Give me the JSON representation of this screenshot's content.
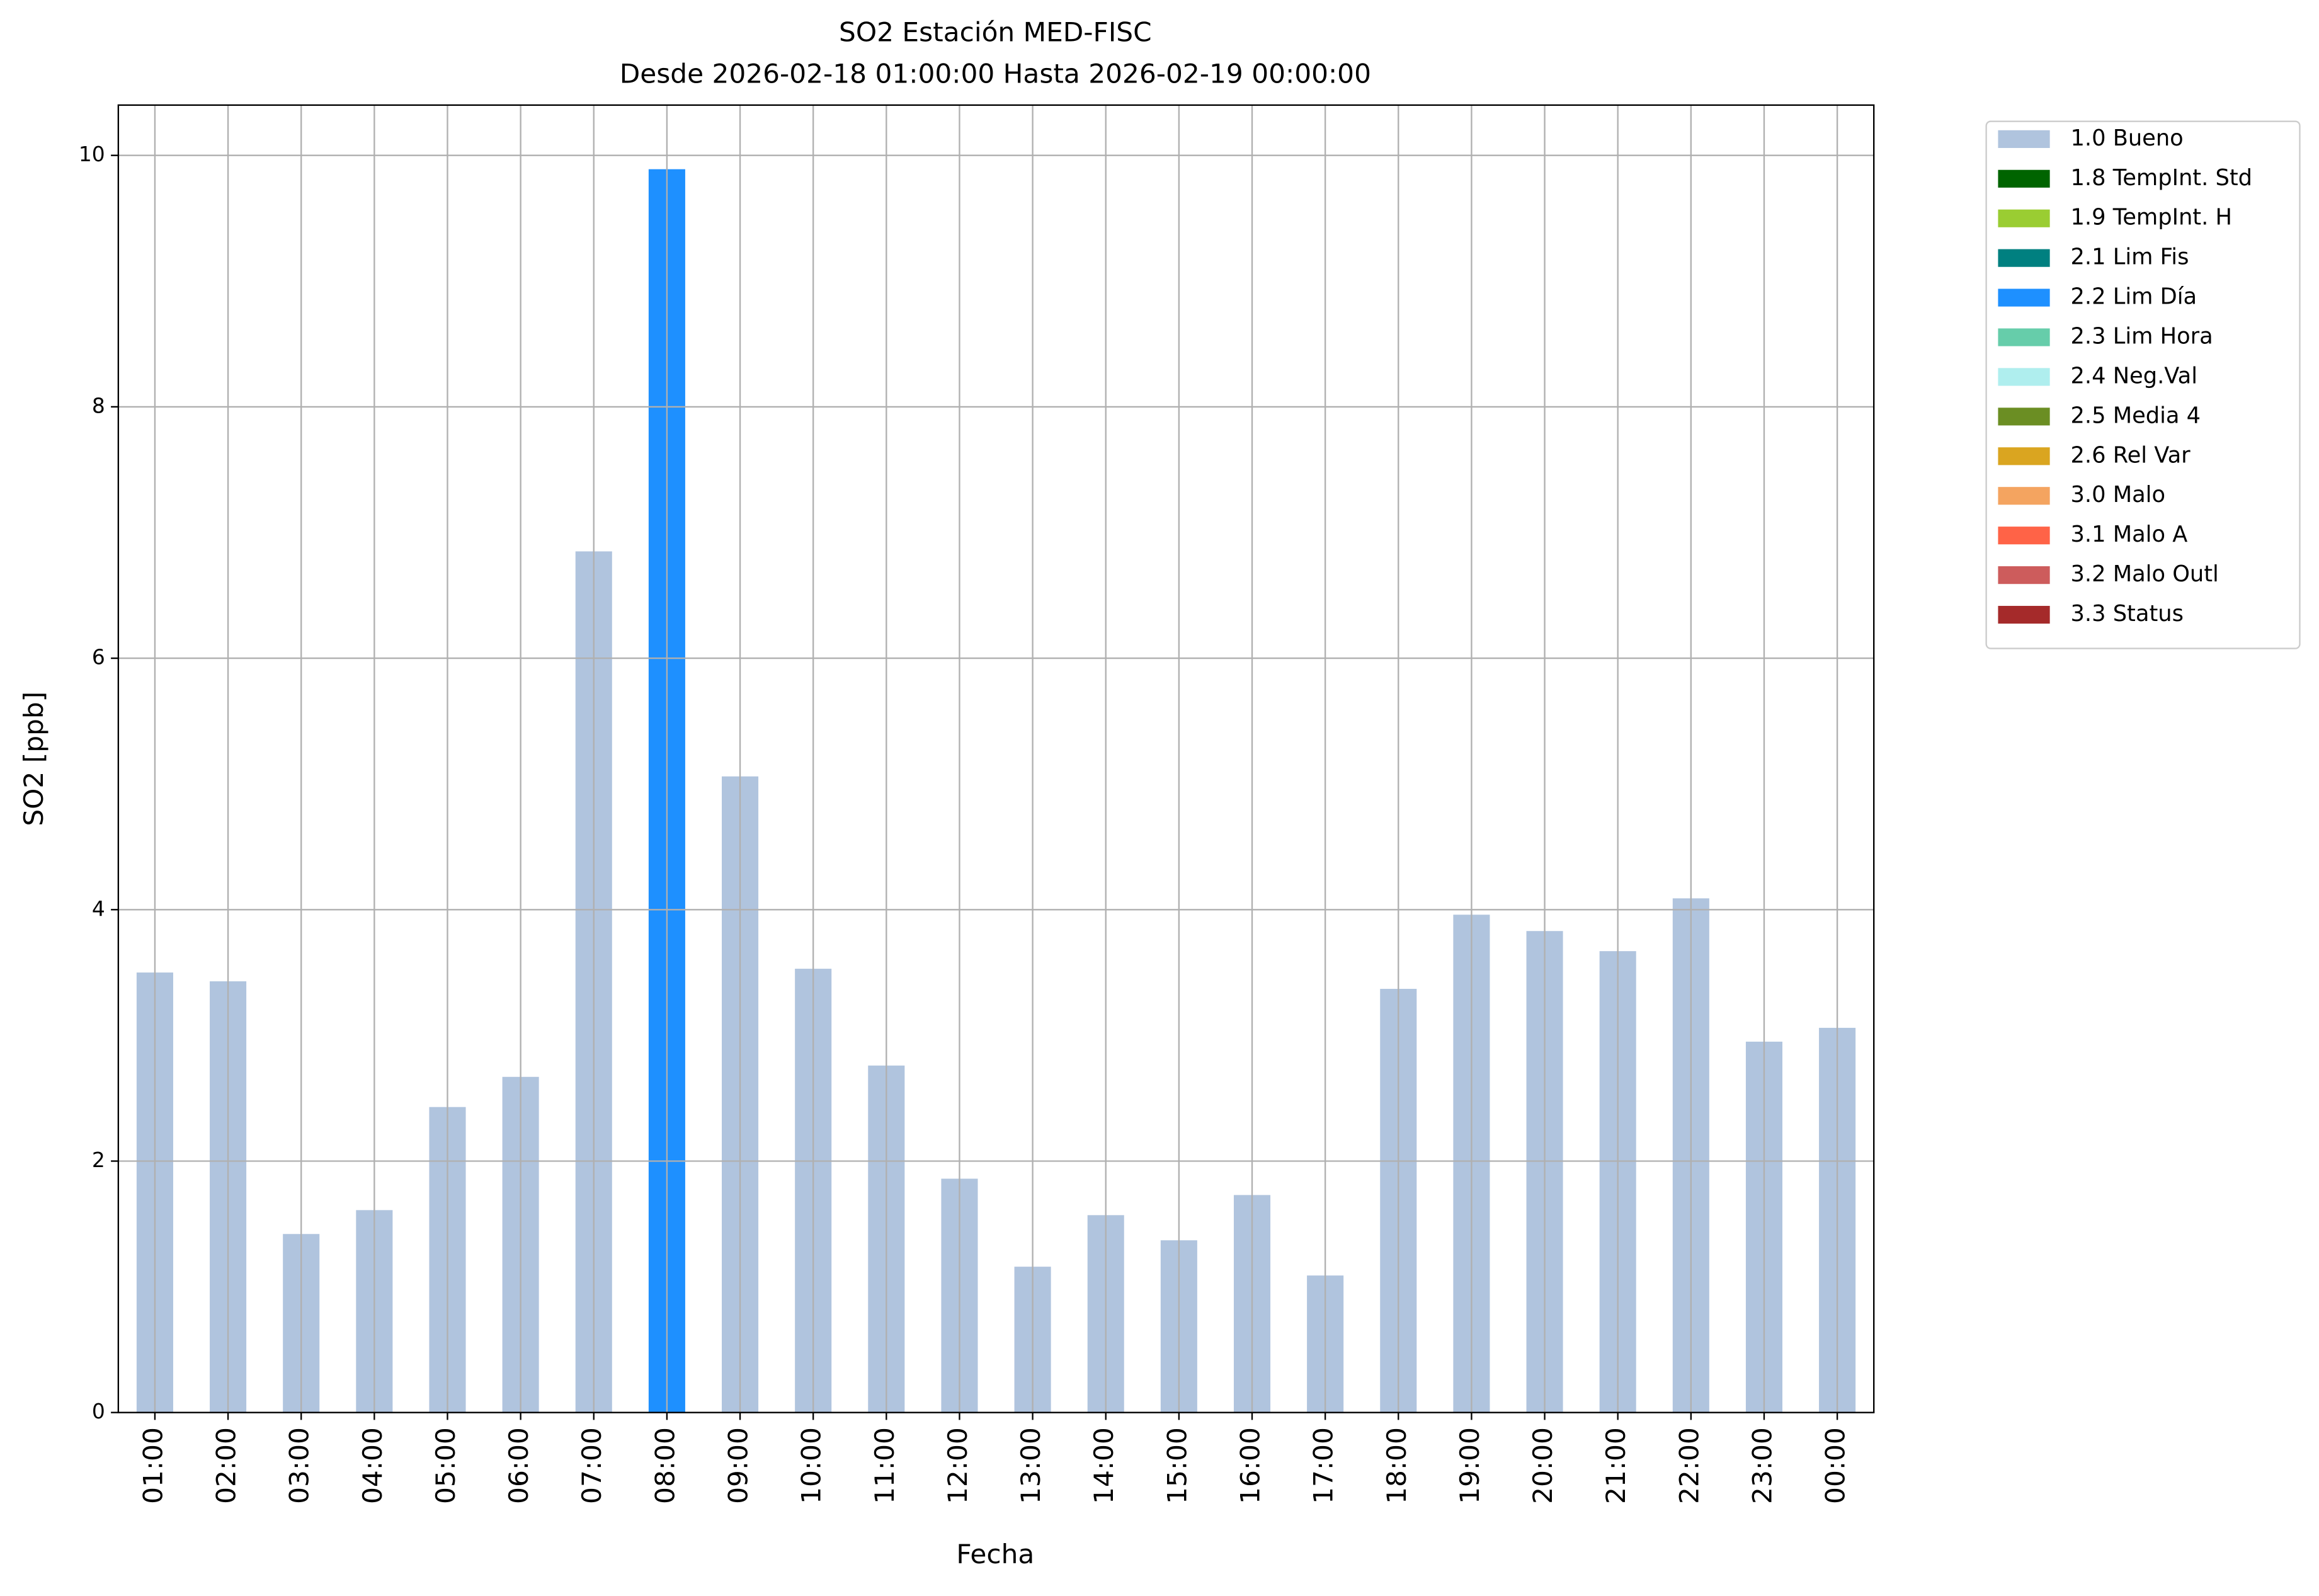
{
  "chart_data": {
    "type": "stacked_bar",
    "title": "SO2 Estación MED-FISC",
    "subtitle": "Desde 2026-02-18 01:00:00 Hasta 2026-02-19 00:00:00",
    "xlabel": "Fecha",
    "ylabel": "SO2 [ppb]",
    "categories": [
      "01:00",
      "02:00",
      "03:00",
      "04:00",
      "05:00",
      "06:00",
      "07:00",
      "08:00",
      "09:00",
      "10:00",
      "11:00",
      "12:00",
      "13:00",
      "14:00",
      "15:00",
      "16:00",
      "17:00",
      "18:00",
      "19:00",
      "20:00",
      "21:00",
      "22:00",
      "23:00",
      "00:00"
    ],
    "series": [
      {
        "name": "1.0 Bueno",
        "color": "#b0c4de",
        "values": [
          3.5,
          3.43,
          1.42,
          1.61,
          2.43,
          2.67,
          6.85,
          null,
          5.06,
          3.53,
          2.76,
          1.86,
          1.16,
          1.57,
          1.37,
          1.73,
          1.09,
          3.37,
          3.96,
          3.83,
          3.67,
          4.09,
          2.95,
          3.06
        ]
      },
      {
        "name": "1.8 TempInt. Std",
        "color": "#006400",
        "values": [
          null,
          null,
          null,
          null,
          null,
          null,
          null,
          null,
          null,
          null,
          null,
          null,
          null,
          null,
          null,
          null,
          null,
          null,
          null,
          null,
          null,
          null,
          null,
          null
        ]
      },
      {
        "name": "1.9 TempInt. H",
        "color": "#9acd32",
        "values": [
          null,
          null,
          null,
          null,
          null,
          null,
          null,
          null,
          null,
          null,
          null,
          null,
          null,
          null,
          null,
          null,
          null,
          null,
          null,
          null,
          null,
          null,
          null,
          null
        ]
      },
      {
        "name": "2.1 Lim Fis",
        "color": "#008080",
        "values": [
          null,
          null,
          null,
          null,
          null,
          null,
          null,
          null,
          null,
          null,
          null,
          null,
          null,
          null,
          null,
          null,
          null,
          null,
          null,
          null,
          null,
          null,
          null,
          null
        ]
      },
      {
        "name": "2.2 Lim Día",
        "color": "#1e90ff",
        "values": [
          null,
          null,
          null,
          null,
          null,
          null,
          null,
          9.89,
          null,
          null,
          null,
          null,
          null,
          null,
          null,
          null,
          null,
          null,
          null,
          null,
          null,
          null,
          null,
          null
        ]
      },
      {
        "name": "2.3 Lim Hora",
        "color": "#66cdaa",
        "values": [
          null,
          null,
          null,
          null,
          null,
          null,
          null,
          null,
          null,
          null,
          null,
          null,
          null,
          null,
          null,
          null,
          null,
          null,
          null,
          null,
          null,
          null,
          null,
          null
        ]
      },
      {
        "name": "2.4 Neg.Val",
        "color": "#afeeee",
        "values": [
          null,
          null,
          null,
          null,
          null,
          null,
          null,
          null,
          null,
          null,
          null,
          null,
          null,
          null,
          null,
          null,
          null,
          null,
          null,
          null,
          null,
          null,
          null,
          null
        ]
      },
      {
        "name": "2.5 Media 4",
        "color": "#6b8e23",
        "values": [
          null,
          null,
          null,
          null,
          null,
          null,
          null,
          null,
          null,
          null,
          null,
          null,
          null,
          null,
          null,
          null,
          null,
          null,
          null,
          null,
          null,
          null,
          null,
          null
        ]
      },
      {
        "name": "2.6 Rel Var",
        "color": "#daa520",
        "values": [
          null,
          null,
          null,
          null,
          null,
          null,
          null,
          null,
          null,
          null,
          null,
          null,
          null,
          null,
          null,
          null,
          null,
          null,
          null,
          null,
          null,
          null,
          null,
          null
        ]
      },
      {
        "name": "3.0 Malo",
        "color": "#f4a460",
        "values": [
          null,
          null,
          null,
          null,
          null,
          null,
          null,
          null,
          null,
          null,
          null,
          null,
          null,
          null,
          null,
          null,
          null,
          null,
          null,
          null,
          null,
          null,
          null,
          null
        ]
      },
      {
        "name": "3.1 Malo A",
        "color": "#ff6347",
        "values": [
          null,
          null,
          null,
          null,
          null,
          null,
          null,
          null,
          null,
          null,
          null,
          null,
          null,
          null,
          null,
          null,
          null,
          null,
          null,
          null,
          null,
          null,
          null,
          null
        ]
      },
      {
        "name": "3.2 Malo Outl",
        "color": "#cd5c5c",
        "values": [
          null,
          null,
          null,
          null,
          null,
          null,
          null,
          null,
          null,
          null,
          null,
          null,
          null,
          null,
          null,
          null,
          null,
          null,
          null,
          null,
          null,
          null,
          null,
          null
        ]
      },
      {
        "name": "3.3 Status",
        "color": "#a52a2a",
        "values": [
          null,
          null,
          null,
          null,
          null,
          null,
          null,
          null,
          null,
          null,
          null,
          null,
          null,
          null,
          null,
          null,
          null,
          null,
          null,
          null,
          null,
          null,
          null,
          null
        ]
      }
    ],
    "ylim": [
      0,
      10.4
    ],
    "yticks": [
      0,
      2,
      4,
      6,
      8,
      10
    ],
    "grid": true,
    "legend": "outside-right"
  }
}
